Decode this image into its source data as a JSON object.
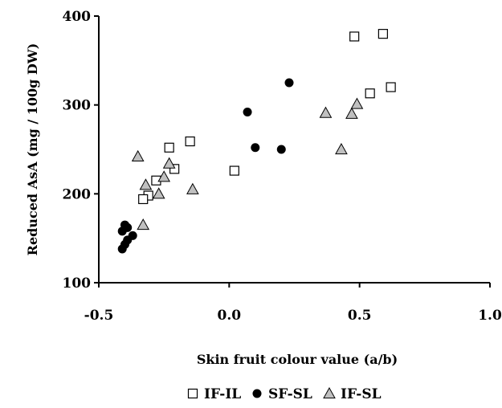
{
  "chart_data": {
    "type": "scatter",
    "xlabel": "Skin fruit colour value (a/b)",
    "ylabel": "Reduced AsA (mg / 100g DW)",
    "xlim": [
      -0.5,
      1.0
    ],
    "ylim": [
      100,
      400
    ],
    "x_ticks": [
      "-0.5",
      "0.0",
      "0.5",
      "1.0"
    ],
    "y_ticks": [
      "100",
      "200",
      "300",
      "400"
    ],
    "grid": false,
    "legend_position": "bottom",
    "series": [
      {
        "name": "IF-IL",
        "marker": "square-open",
        "color": "#000000",
        "points": [
          {
            "x": 0.48,
            "y": 377
          },
          {
            "x": 0.59,
            "y": 380
          },
          {
            "x": 0.54,
            "y": 313
          },
          {
            "x": 0.62,
            "y": 320
          },
          {
            "x": -0.23,
            "y": 252
          },
          {
            "x": -0.15,
            "y": 259
          },
          {
            "x": -0.21,
            "y": 228
          },
          {
            "x": -0.28,
            "y": 215
          },
          {
            "x": -0.31,
            "y": 198
          },
          {
            "x": -0.33,
            "y": 194
          },
          {
            "x": 0.02,
            "y": 226
          }
        ]
      },
      {
        "name": "SF-SL",
        "marker": "circle-filled",
        "color": "#000000",
        "points": [
          {
            "x": 0.23,
            "y": 325
          },
          {
            "x": 0.07,
            "y": 292
          },
          {
            "x": 0.1,
            "y": 252
          },
          {
            "x": 0.2,
            "y": 250
          },
          {
            "x": -0.4,
            "y": 165
          },
          {
            "x": -0.39,
            "y": 162
          },
          {
            "x": -0.41,
            "y": 158
          },
          {
            "x": -0.37,
            "y": 153
          },
          {
            "x": -0.39,
            "y": 148
          },
          {
            "x": -0.4,
            "y": 143
          },
          {
            "x": -0.41,
            "y": 138
          }
        ]
      },
      {
        "name": "IF-SL",
        "marker": "triangle-gray",
        "color": "#c0c0c0",
        "points": [
          {
            "x": -0.35,
            "y": 242
          },
          {
            "x": -0.23,
            "y": 234
          },
          {
            "x": -0.32,
            "y": 210
          },
          {
            "x": -0.25,
            "y": 219
          },
          {
            "x": -0.27,
            "y": 200
          },
          {
            "x": -0.14,
            "y": 205
          },
          {
            "x": -0.33,
            "y": 165
          },
          {
            "x": 0.37,
            "y": 291
          },
          {
            "x": 0.47,
            "y": 290
          },
          {
            "x": 0.49,
            "y": 301
          },
          {
            "x": 0.43,
            "y": 250
          }
        ]
      }
    ]
  }
}
